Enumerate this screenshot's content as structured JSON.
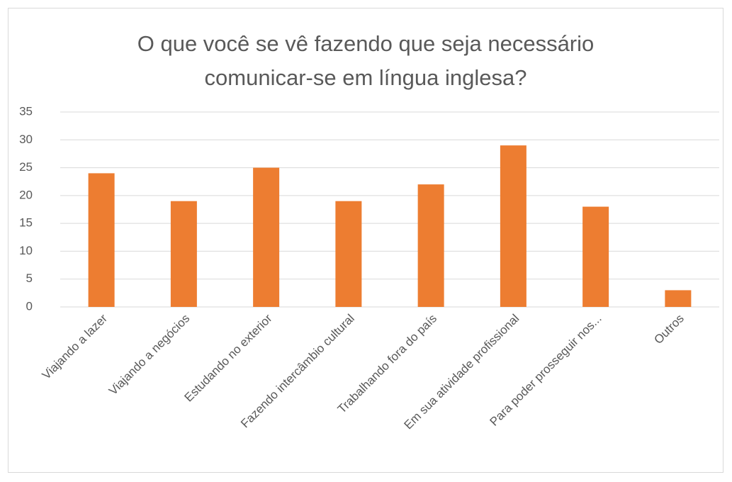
{
  "chart_data": {
    "type": "bar",
    "title": "O que você se vê fazendo que seja necessário comunicar-se em língua inglesa?",
    "categories": [
      "Viajando a lazer",
      "Viajando a negócios",
      "Estudando no exterior",
      "Fazendo intercâmbio cultural",
      "Trabalhando fora do país",
      "Em sua atividade profissional",
      "Para poder prosseguir nos...",
      "Outros"
    ],
    "values": [
      24,
      19,
      25,
      19,
      22,
      29,
      18,
      3
    ],
    "color": "#ed7d31",
    "ylim": [
      0,
      35
    ],
    "yticks": [
      0,
      5,
      10,
      15,
      20,
      25,
      30,
      35
    ],
    "grid": true
  }
}
